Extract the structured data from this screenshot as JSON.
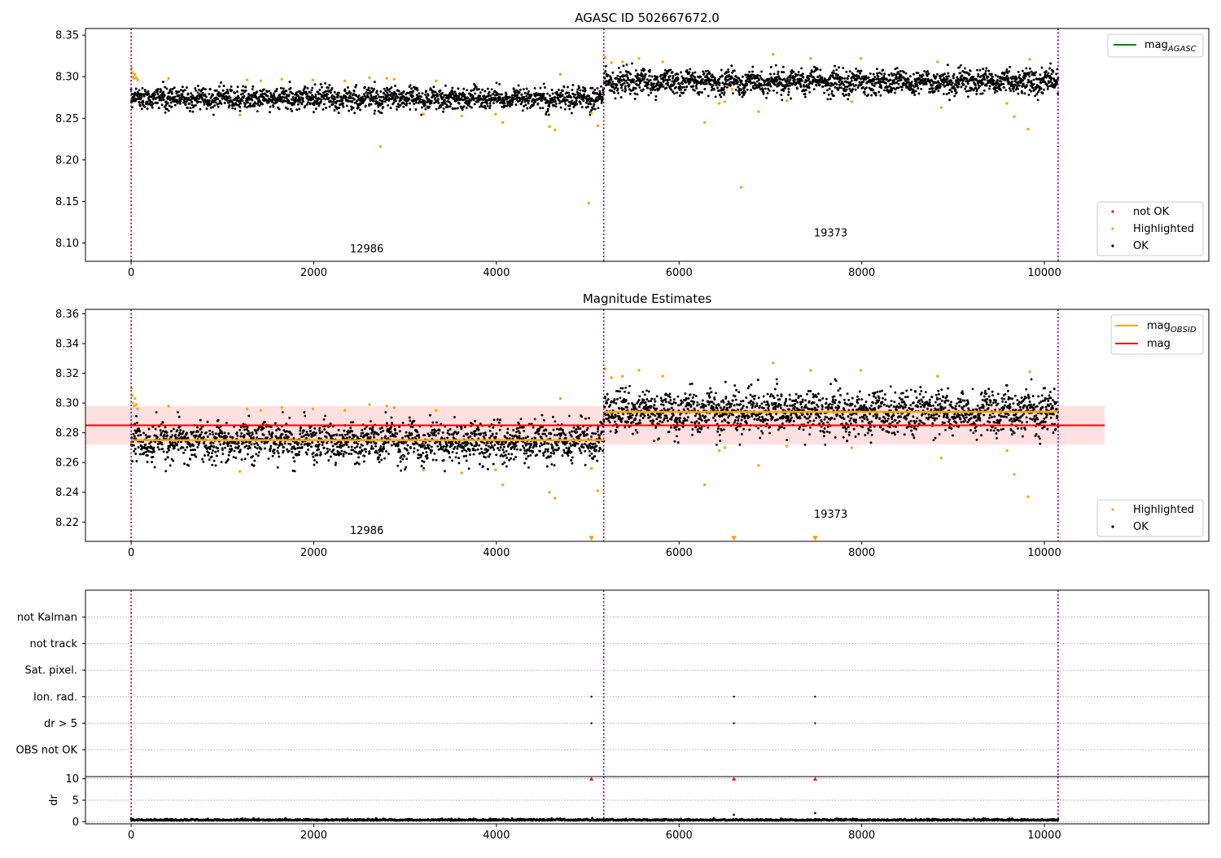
{
  "chart_data": [
    {
      "type": "scatter",
      "title": "AGASC ID 502667672.0",
      "xlabel": "",
      "ylabel": "",
      "xlim": [
        -500,
        11800
      ],
      "ylim": [
        8.078,
        8.358
      ],
      "xticks": [
        0,
        2000,
        4000,
        6000,
        8000,
        10000
      ],
      "yticks": [
        8.1,
        8.15,
        8.2,
        8.25,
        8.3,
        8.35
      ],
      "ytick_labels": [
        "8.10",
        "8.15",
        "8.20",
        "8.25",
        "8.30",
        "8.35"
      ],
      "vlines": [
        0,
        5175,
        10150
      ],
      "annotations": [
        {
          "text": "12986",
          "x": 2580,
          "y": 8.089
        },
        {
          "text": "19373",
          "x": 7660,
          "y": 8.108
        }
      ],
      "segments": [
        {
          "x_start": 0,
          "x_end": 5175,
          "ok_mean": 8.274,
          "ok_spread": 0.009
        },
        {
          "x_start": 5175,
          "x_end": 10150,
          "ok_mean": 8.294,
          "ok_spread": 0.01
        }
      ],
      "legend_upper": {
        "placement": "top-right",
        "entries": [
          {
            "label": "mag",
            "sub": "AGASC",
            "color": "#008000"
          }
        ]
      },
      "legend_lower": {
        "placement": "bottom-right",
        "entries": [
          {
            "label": "not OK",
            "color": "#ff0000"
          },
          {
            "label": "Highlighted",
            "color": "#ffa500"
          },
          {
            "label": "OK",
            "color": "#000000"
          }
        ]
      },
      "series": [
        {
          "name": "Highlighted",
          "color": "#ffa500",
          "x": [
            5,
            12,
            20,
            30,
            40,
            55,
            70,
            410,
            1190,
            1270,
            1420,
            1650,
            1990,
            2340,
            2610,
            2730,
            2800,
            2880,
            3200,
            3340,
            3620,
            3990,
            4070,
            4580,
            4640,
            4700,
            5010,
            5040,
            5110,
            5190,
            5260,
            5380,
            5560,
            5820,
            6280,
            6440,
            6500,
            6580,
            6680,
            6870,
            7030,
            7180,
            7440,
            7890,
            7990,
            8830,
            8870,
            9590,
            9670,
            9820,
            9840
          ],
          "y": [
            8.31,
            8.305,
            8.3,
            8.298,
            8.303,
            8.299,
            8.296,
            8.298,
            8.254,
            8.296,
            8.295,
            8.297,
            8.296,
            8.295,
            8.299,
            8.216,
            8.298,
            8.297,
            8.255,
            8.295,
            8.253,
            8.255,
            8.245,
            8.24,
            8.236,
            8.303,
            8.148,
            8.256,
            8.241,
            8.323,
            8.317,
            8.318,
            8.322,
            8.318,
            8.245,
            8.268,
            8.27,
            8.285,
            8.167,
            8.258,
            8.327,
            8.271,
            8.322,
            8.27,
            8.322,
            8.318,
            8.263,
            8.268,
            8.252,
            8.237,
            8.321
          ]
        },
        {
          "name": "not OK",
          "color": "#ff0000",
          "x": [],
          "y": []
        }
      ]
    },
    {
      "type": "scatter",
      "title": "Magnitude Estimates",
      "xlabel": "",
      "ylabel": "",
      "xlim": [
        -500,
        11800
      ],
      "ylim": [
        8.207,
        8.363
      ],
      "xticks": [
        0,
        2000,
        4000,
        6000,
        8000,
        10000
      ],
      "yticks": [
        8.22,
        8.24,
        8.26,
        8.28,
        8.3,
        8.32,
        8.34,
        8.36
      ],
      "ytick_labels": [
        "8.22",
        "8.24",
        "8.26",
        "8.28",
        "8.30",
        "8.32",
        "8.34",
        "8.36"
      ],
      "vlines": [
        0,
        5175,
        10150
      ],
      "annotations": [
        {
          "text": "12986",
          "x": 2580,
          "y": 8.212
        },
        {
          "text": "19373",
          "x": 7660,
          "y": 8.223
        }
      ],
      "mag": {
        "value": 8.285,
        "band": [
          8.272,
          8.298
        ],
        "x_start": -500,
        "x_end": 10660,
        "color": "#ff0000"
      },
      "mag_obsid": [
        {
          "x_start": 0,
          "x_end": 5175,
          "value": 8.275
        },
        {
          "x_start": 5175,
          "x_end": 10150,
          "value": 8.294
        }
      ],
      "segments": [
        {
          "x_start": 0,
          "x_end": 5175,
          "ok_mean": 8.274,
          "ok_spread": 0.009
        },
        {
          "x_start": 5175,
          "x_end": 10150,
          "ok_mean": 8.294,
          "ok_spread": 0.01
        }
      ],
      "legend_upper": {
        "placement": "top-right",
        "entries": [
          {
            "label": "mag",
            "sub": "OBSID",
            "color": "#ffa500"
          },
          {
            "label": "mag",
            "sub": "",
            "color": "#ff0000"
          }
        ]
      },
      "legend_lower": {
        "placement": "bottom-right",
        "entries": [
          {
            "label": "Highlighted",
            "color": "#ffa500"
          },
          {
            "label": "OK",
            "color": "#000000"
          }
        ]
      },
      "series": [
        {
          "name": "Highlighted",
          "color": "#ffa500",
          "x": [
            5,
            12,
            20,
            30,
            40,
            55,
            70,
            410,
            1190,
            1270,
            1420,
            1650,
            1990,
            2340,
            2610,
            2730,
            2800,
            2880,
            3200,
            3340,
            3620,
            3990,
            4070,
            4580,
            4640,
            4700,
            5040,
            5110,
            5190,
            5260,
            5380,
            5560,
            5820,
            6280,
            6440,
            6500,
            6870,
            7030,
            7180,
            7440,
            7890,
            7990,
            8830,
            8870,
            9590,
            9670,
            9820,
            9840
          ],
          "y": [
            8.31,
            8.305,
            8.3,
            8.298,
            8.303,
            8.299,
            8.296,
            8.298,
            8.254,
            8.296,
            8.295,
            8.297,
            8.296,
            8.295,
            8.299,
            8.216,
            8.298,
            8.297,
            8.255,
            8.295,
            8.253,
            8.255,
            8.245,
            8.24,
            8.236,
            8.303,
            8.256,
            8.241,
            8.323,
            8.317,
            8.318,
            8.322,
            8.318,
            8.245,
            8.268,
            8.27,
            8.258,
            8.327,
            8.271,
            8.322,
            8.27,
            8.322,
            8.318,
            8.263,
            8.268,
            8.252,
            8.237,
            8.321
          ]
        },
        {
          "name": "below-range",
          "color": "#ffa500",
          "marker": "triangle-down",
          "x": [
            5040,
            6600,
            7490
          ],
          "y": [
            8.209,
            8.209,
            8.209
          ]
        }
      ]
    },
    {
      "type": "scatter",
      "title": "",
      "xlabel": "",
      "ylabel": "",
      "xlim": [
        -500,
        11800
      ],
      "categories": [
        "not Kalman",
        "not track",
        "Sat. pixel.",
        "Ion. rad.",
        "dr > 5",
        "OBS not OK"
      ],
      "vlines": [
        0,
        5175,
        10150
      ],
      "series": [
        {
          "name": "Ion. rad.",
          "x": [
            5040,
            6600,
            7490
          ]
        },
        {
          "name": "dr > 5",
          "x": [
            5040,
            6600,
            7490
          ]
        }
      ]
    },
    {
      "type": "scatter",
      "title": "",
      "xlabel": "",
      "ylabel": "dr",
      "xlim": [
        -500,
        11800
      ],
      "ylim": [
        -0.5,
        10.5
      ],
      "xticks": [
        0,
        2000,
        4000,
        6000,
        8000,
        10000
      ],
      "yticks": [
        0,
        5,
        10
      ],
      "vlines": [
        0,
        5175,
        10150
      ],
      "baseline_mean": 0.3,
      "series": [
        {
          "name": "dr > 5",
          "color": "#ff0000",
          "marker": "triangle-up",
          "x": [
            5040,
            6600,
            7490
          ],
          "y": [
            10,
            10,
            10
          ]
        },
        {
          "name": "spikes",
          "color": "#000000",
          "x": [
            5050,
            6600,
            7490
          ],
          "y": [
            0.9,
            1.6,
            2.0
          ]
        }
      ]
    }
  ]
}
